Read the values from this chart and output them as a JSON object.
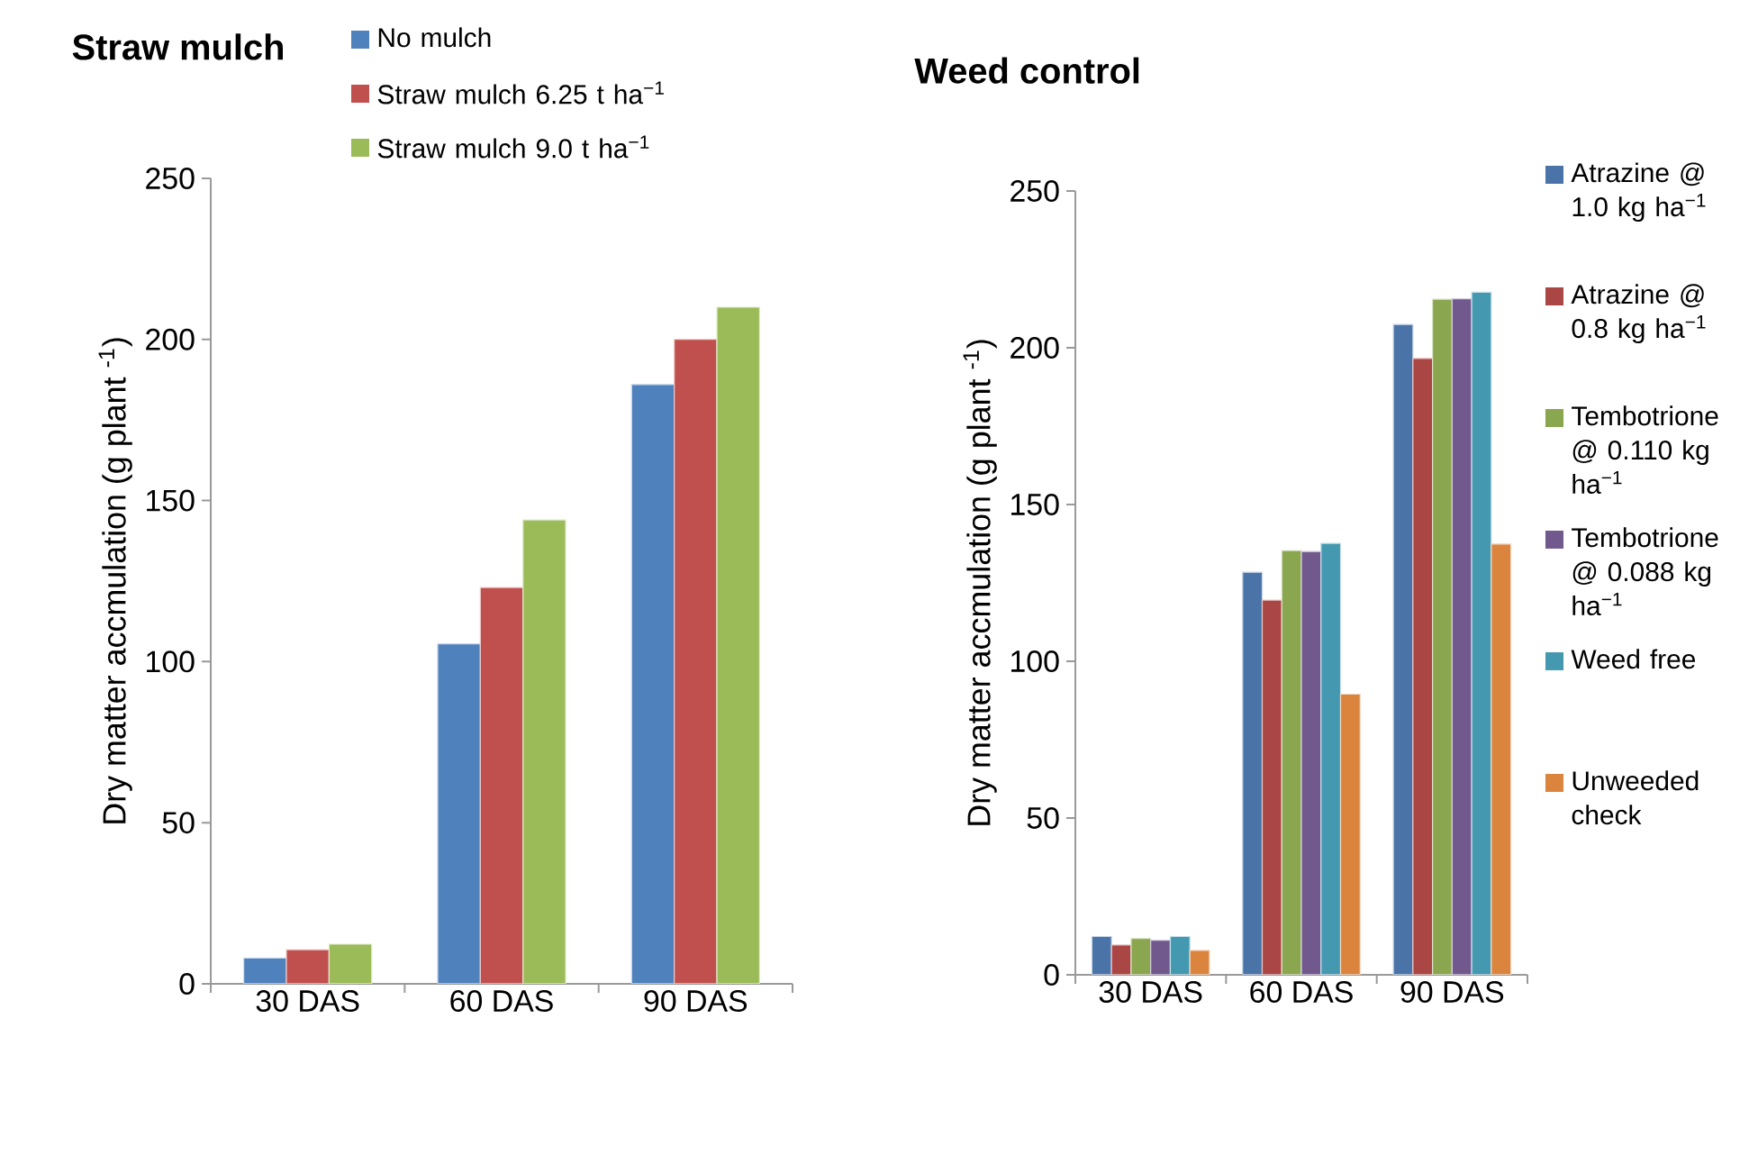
{
  "chart_data": [
    {
      "type": "bar",
      "title": "Straw mulch",
      "ylabel": "Dry  matter accmulation (g plant $^{-1}$)",
      "categories": [
        "30 DAS",
        "60 DAS",
        "90 DAS"
      ],
      "series": [
        {
          "name": "No mulch",
          "color": "#4f81bd",
          "values": [
            8,
            105.5,
            186
          ]
        },
        {
          "name": "Straw mulch 6.25 t ha$^{−1}$",
          "color": "#c0504d",
          "values": [
            10.6,
            123,
            200
          ]
        },
        {
          "name": "Straw mulch 9.0 t ha$^{−1}$",
          "color": "#9bbb59",
          "values": [
            12.3,
            144,
            210
          ]
        }
      ],
      "ylim": [
        0,
        250
      ],
      "yticks": [
        0,
        50,
        100,
        150,
        200,
        250
      ],
      "legend": "top"
    },
    {
      "type": "bar",
      "title": "Weed control",
      "ylabel": "Dry  matter accmulation (g plant $^{-1}$)",
      "categories": [
        "30 DAS",
        "60 DAS",
        "90 DAS"
      ],
      "series": [
        {
          "name": "Atrazine @ 1.0 kg ha$^{−1}$",
          "color": "#4a74a8",
          "values": [
            12.2,
            128.4,
            207.4
          ]
        },
        {
          "name": "Atrazine @ 0.8 kg ha$^{−1}$",
          "color": "#aa4644",
          "values": [
            9.5,
            119.5,
            196.6
          ]
        },
        {
          "name": "Tembotrione @ 0.110 kg ha$^{−1}$",
          "color": "#8aa64f",
          "values": [
            11.6,
            135.3,
            215.5
          ]
        },
        {
          "name": "Tembotrione @ 0.088 kg ha$^{−1}$",
          "color": "#71598e",
          "values": [
            11,
            135,
            215.6
          ]
        },
        {
          "name": "Weed free",
          "color": "#4499b1",
          "values": [
            12.2,
            137.6,
            217.7
          ]
        },
        {
          "name": "Unweeded check",
          "color": "#db843d",
          "values": [
            7.8,
            89.5,
            137.4
          ]
        }
      ],
      "ylim": [
        0,
        250
      ],
      "yticks": [
        0,
        50,
        100,
        150,
        200,
        250
      ],
      "legend": "right"
    }
  ]
}
